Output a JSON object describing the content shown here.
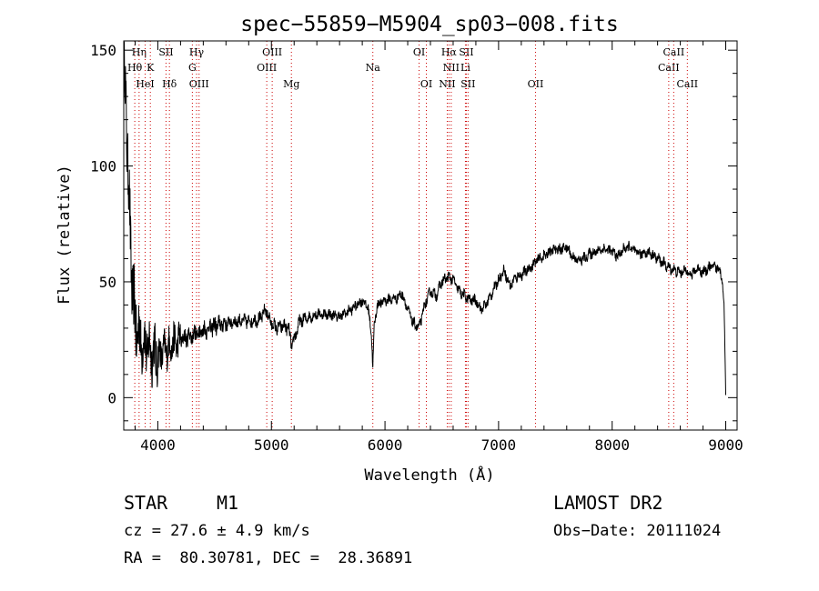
{
  "chart_data": {
    "type": "line",
    "title": "spec−55859−M5904_sp03−008.fits",
    "xlabel": "Wavelength (Å)",
    "ylabel": "Flux (relative)",
    "xlim": [
      3700,
      9100
    ],
    "ylim": [
      -14,
      154
    ],
    "xticks": [
      4000,
      5000,
      6000,
      7000,
      8000,
      9000
    ],
    "yticks": [
      0,
      50,
      100,
      150
    ],
    "line_color": "#000000",
    "marker_color": "#cc0000",
    "spectrum_anchors": {
      "x": [
        3700,
        3720,
        3740,
        3760,
        3780,
        3800,
        3850,
        3900,
        3950,
        4000,
        4050,
        4100,
        4200,
        4300,
        4400,
        4500,
        4600,
        4700,
        4800,
        4900,
        4950,
        5000,
        5050,
        5100,
        5150,
        5180,
        5250,
        5300,
        5400,
        5500,
        5600,
        5700,
        5800,
        5850,
        5880,
        5893,
        5905,
        5930,
        6000,
        6100,
        6150,
        6200,
        6250,
        6300,
        6350,
        6400,
        6450,
        6500,
        6550,
        6600,
        6650,
        6700,
        6750,
        6800,
        6850,
        6900,
        6950,
        7000,
        7050,
        7100,
        7150,
        7200,
        7250,
        7300,
        7350,
        7400,
        7450,
        7500,
        7550,
        7600,
        7650,
        7700,
        7750,
        7800,
        7850,
        7900,
        7950,
        8000,
        8050,
        8100,
        8150,
        8200,
        8250,
        8300,
        8350,
        8400,
        8450,
        8500,
        8550,
        8600,
        8650,
        8700,
        8750,
        8800,
        8850,
        8900,
        8950,
        8970,
        8985,
        8995,
        9000
      ],
      "y": [
        150,
        128,
        95,
        65,
        45,
        32,
        25,
        22,
        20,
        18,
        20,
        22,
        25,
        27,
        29,
        31,
        32,
        33,
        33,
        34,
        38,
        32,
        30,
        31,
        30,
        22,
        33,
        34,
        36,
        36,
        35,
        38,
        42,
        39,
        28,
        14,
        30,
        40,
        42,
        43,
        45,
        38,
        32,
        30,
        40,
        46,
        44,
        50,
        52,
        51,
        46,
        44,
        42,
        42,
        38,
        41,
        46,
        51,
        55,
        48,
        52,
        53,
        55,
        57,
        60,
        61,
        63,
        64,
        64,
        65,
        61,
        59,
        60,
        62,
        63,
        64,
        64,
        63,
        61,
        64,
        65,
        63,
        62,
        63,
        62,
        60,
        58,
        56,
        55,
        54,
        55,
        53,
        56,
        54,
        56,
        57,
        55,
        50,
        40,
        15,
        2
      ]
    },
    "spectral_lines": [
      {
        "label": "Hη",
        "x": 3835,
        "row": 1
      },
      {
        "label": "Hθ",
        "x": 3797,
        "row": 2
      },
      {
        "label": "HeI",
        "x": 3888,
        "row": 3
      },
      {
        "label": "K",
        "x": 3934,
        "row": 2
      },
      {
        "label": "SII",
        "x": 4072,
        "row": 1
      },
      {
        "label": "Hδ",
        "x": 4102,
        "row": 3
      },
      {
        "label": "Hγ",
        "x": 4341,
        "row": 1
      },
      {
        "label": "G",
        "x": 4304,
        "row": 2
      },
      {
        "label": "OIII",
        "x": 4363,
        "row": 3
      },
      {
        "label": "OIII",
        "x": 5007,
        "row": 1
      },
      {
        "label": "OIII",
        "x": 4959,
        "row": 2
      },
      {
        "label": "Mg",
        "x": 5176,
        "row": 3
      },
      {
        "label": "Na",
        "x": 5893,
        "row": 2
      },
      {
        "label": "OI",
        "x": 6300,
        "row": 1
      },
      {
        "label": "OI",
        "x": 6364,
        "row": 3
      },
      {
        "label": "Hα",
        "x": 6563,
        "row": 1
      },
      {
        "label": "SII",
        "x": 6716,
        "row": 1
      },
      {
        "label": "NII",
        "x": 6583,
        "row": 2
      },
      {
        "label": "Li",
        "x": 6708,
        "row": 2
      },
      {
        "label": "NII",
        "x": 6548,
        "row": 3
      },
      {
        "label": "SII",
        "x": 6731,
        "row": 3
      },
      {
        "label": "OII",
        "x": 7325,
        "row": 3
      },
      {
        "label": "CaII",
        "x": 8498,
        "row": 2
      },
      {
        "label": "CaII",
        "x": 8542,
        "row": 1
      },
      {
        "label": "CaII",
        "x": 8662,
        "row": 3
      }
    ]
  },
  "info": {
    "object_class": "STAR",
    "subclass": "M1",
    "survey": "LAMOST DR2",
    "redshift": "cz = 27.6 ± 4.9 km/s",
    "obs_date": "Obs−Date: 20111024",
    "coords": "RA =  80.30781, DEC =  28.36891"
  }
}
